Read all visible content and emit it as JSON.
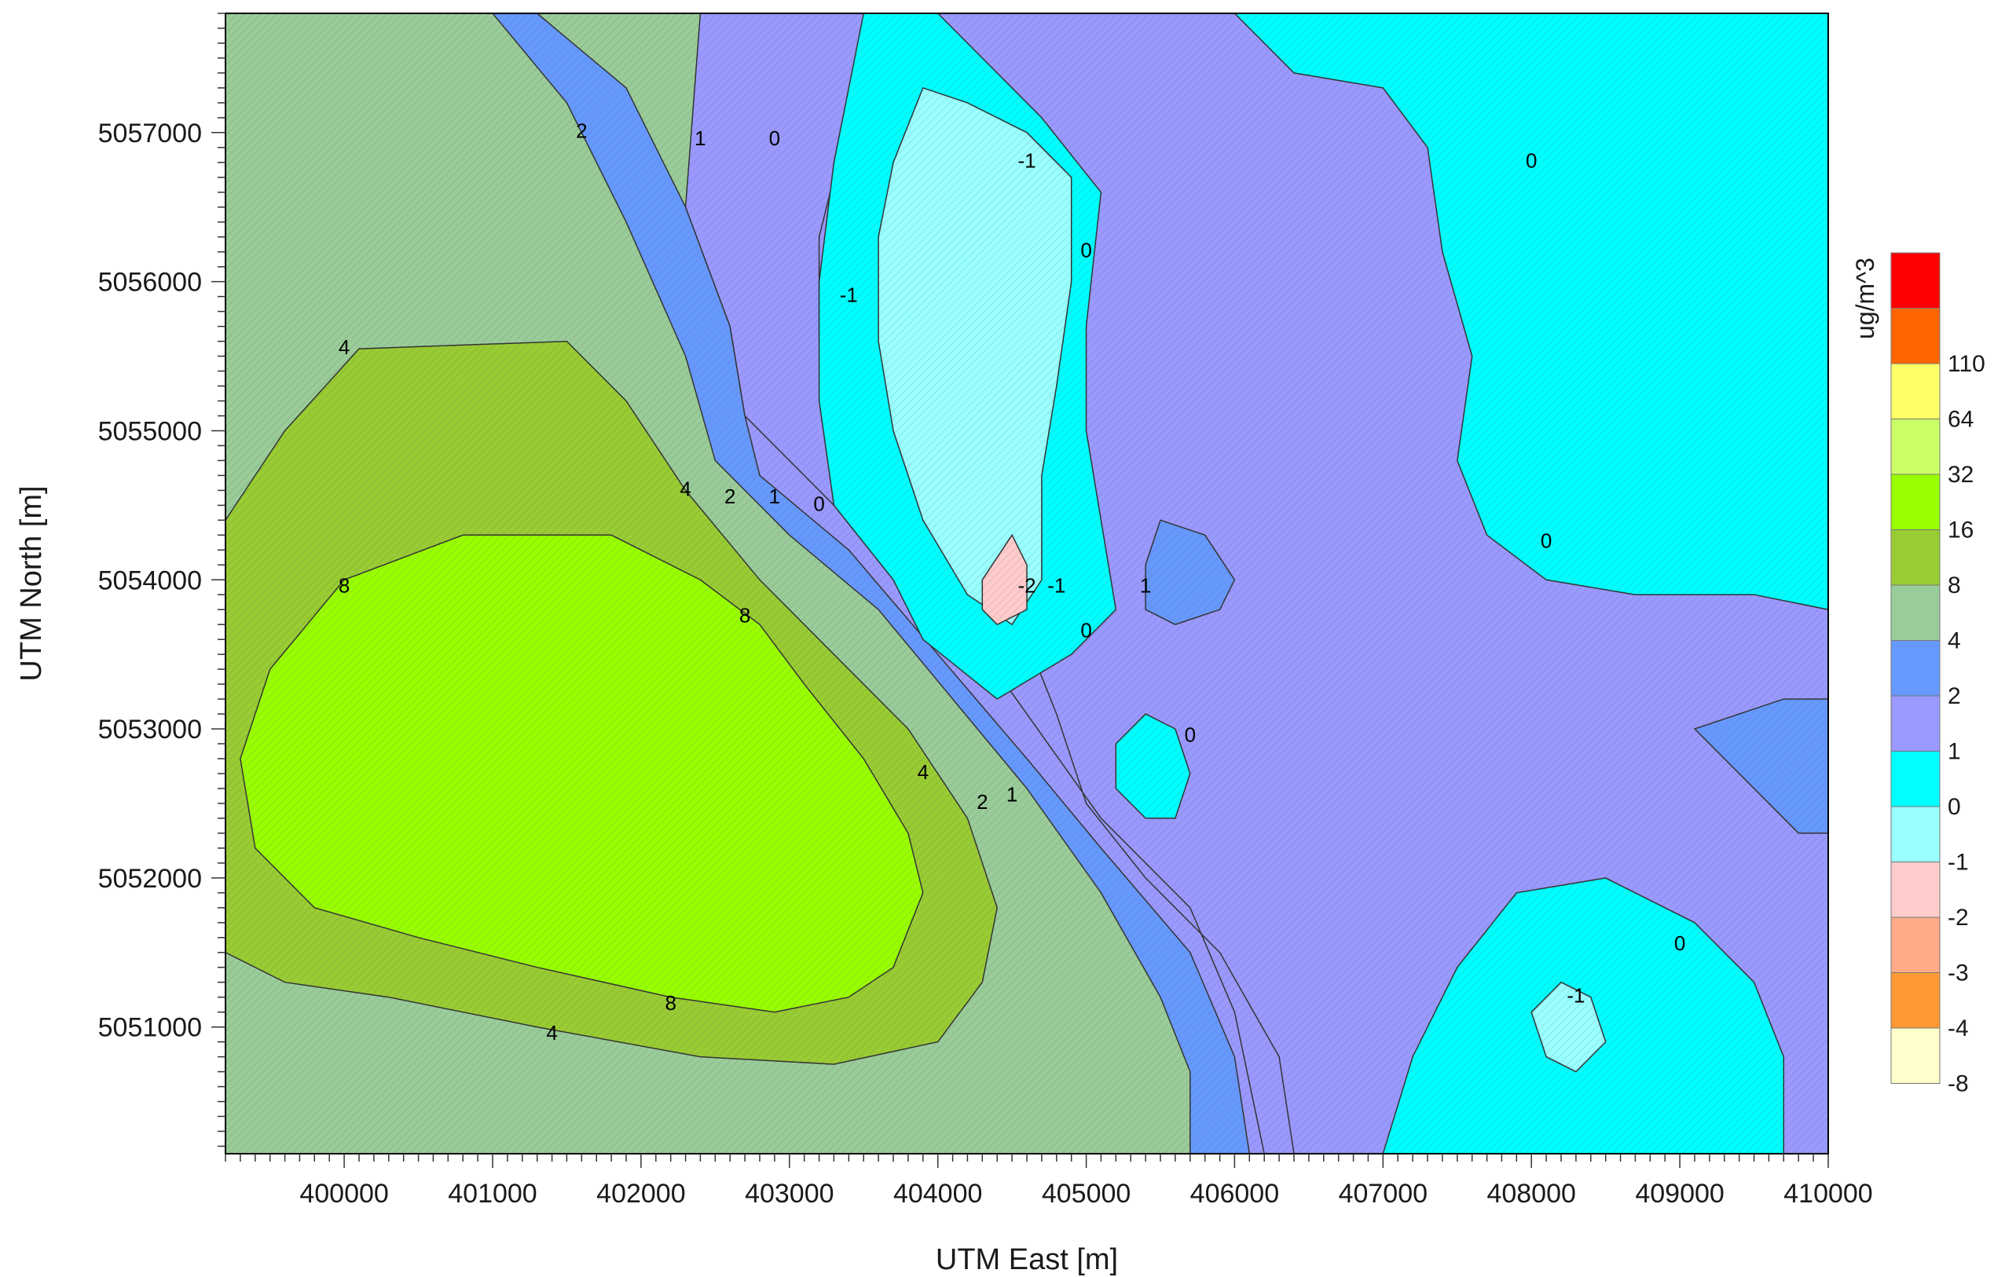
{
  "chart_data": {
    "type": "contour",
    "xlabel": "UTM East [m]",
    "ylabel": "UTM North [m]",
    "xlim": [
      399200,
      410000
    ],
    "ylim": [
      5050150,
      5057800
    ],
    "x_ticks": [
      400000,
      401000,
      402000,
      403000,
      404000,
      405000,
      406000,
      407000,
      408000,
      409000,
      410000
    ],
    "y_ticks": [
      5051000,
      5052000,
      5053000,
      5054000,
      5055000,
      5056000,
      5057000
    ],
    "grid": false,
    "colorbar": {
      "title": "ug/m^3",
      "placement": "right",
      "levels": [
        {
          "label": "-8",
          "color": "#ffffcc"
        },
        {
          "label": "-4",
          "color": "#ff9933"
        },
        {
          "label": "-3",
          "color": "#ffaa88"
        },
        {
          "label": "-2",
          "color": "#ffcccc"
        },
        {
          "label": "-1",
          "color": "#99ffff"
        },
        {
          "label": "0",
          "color": "#00ffff"
        },
        {
          "label": "1",
          "color": "#9999ff"
        },
        {
          "label": "2",
          "color": "#6699ff"
        },
        {
          "label": "4",
          "color": "#99cc99"
        },
        {
          "label": "8",
          "color": "#99cc33"
        },
        {
          "label": "16",
          "color": "#99ff00"
        },
        {
          "label": "32",
          "color": "#ccff66"
        },
        {
          "label": "64",
          "color": "#ffff66"
        },
        {
          "label": "110",
          "color": "#ff6600"
        },
        {
          "label": "",
          "color": "#ff0000"
        }
      ]
    },
    "regions": [
      {
        "level": "2",
        "color": "#6699ff",
        "points": [
          [
            399200,
            5057800
          ],
          [
            401300,
            5057800
          ],
          [
            401900,
            5057300
          ],
          [
            402300,
            5056500
          ],
          [
            402600,
            5055700
          ],
          [
            402700,
            5055100
          ],
          [
            403400,
            5054400
          ],
          [
            404100,
            5053800
          ],
          [
            404600,
            5053100
          ],
          [
            405100,
            5052400
          ],
          [
            405700,
            5051800
          ],
          [
            406000,
            5051100
          ],
          [
            406200,
            5050150
          ],
          [
            399200,
            5050150
          ]
        ]
      },
      {
        "level": "4",
        "color": "#99cc99",
        "points": [
          [
            399200,
            5057800
          ],
          [
            401000,
            5057800
          ],
          [
            401500,
            5057200
          ],
          [
            401900,
            5056400
          ],
          [
            402300,
            5055500
          ],
          [
            402500,
            5054800
          ],
          [
            403000,
            5054300
          ],
          [
            403600,
            5053800
          ],
          [
            404100,
            5053200
          ],
          [
            404600,
            5052600
          ],
          [
            405100,
            5051900
          ],
          [
            405500,
            5051200
          ],
          [
            405700,
            5050700
          ],
          [
            405700,
            5050150
          ],
          [
            399200,
            5050150
          ]
        ]
      },
      {
        "level": "8",
        "color": "#99cc33",
        "points": [
          [
            399200,
            5054400
          ],
          [
            399600,
            5055000
          ],
          [
            400100,
            5055550
          ],
          [
            401500,
            5055600
          ],
          [
            401900,
            5055200
          ],
          [
            402300,
            5054600
          ],
          [
            402800,
            5054000
          ],
          [
            403300,
            5053500
          ],
          [
            403800,
            5053000
          ],
          [
            404200,
            5052400
          ],
          [
            404400,
            5051800
          ],
          [
            404300,
            5051300
          ],
          [
            404000,
            5050900
          ],
          [
            403300,
            5050750
          ],
          [
            402400,
            5050800
          ],
          [
            401300,
            5051000
          ],
          [
            400300,
            5051200
          ],
          [
            399600,
            5051300
          ],
          [
            399200,
            5051500
          ]
        ]
      },
      {
        "level": "16",
        "color": "#99ff00",
        "points": [
          [
            399300,
            5052800
          ],
          [
            399500,
            5053400
          ],
          [
            400000,
            5054000
          ],
          [
            400800,
            5054300
          ],
          [
            401800,
            5054300
          ],
          [
            402400,
            5054000
          ],
          [
            402800,
            5053700
          ],
          [
            403100,
            5053300
          ],
          [
            403500,
            5052800
          ],
          [
            403800,
            5052300
          ],
          [
            403900,
            5051900
          ],
          [
            403700,
            5051400
          ],
          [
            403400,
            5051200
          ],
          [
            402900,
            5051100
          ],
          [
            402200,
            5051200
          ],
          [
            401300,
            5051400
          ],
          [
            400500,
            5051600
          ],
          [
            399800,
            5051800
          ],
          [
            399400,
            5052200
          ]
        ]
      },
      {
        "level": "0",
        "color": "#9999ff",
        "points": [
          [
            403500,
            5057800
          ],
          [
            410000,
            5057800
          ],
          [
            410000,
            5050150
          ],
          [
            406100,
            5050150
          ],
          [
            406000,
            5050800
          ],
          [
            405700,
            5051500
          ],
          [
            405100,
            5052200
          ],
          [
            404600,
            5052800
          ],
          [
            404000,
            5053500
          ],
          [
            403400,
            5054200
          ],
          [
            402800,
            5054700
          ],
          [
            402700,
            5055100
          ],
          [
            402900,
            5055700
          ],
          [
            403000,
            5056400
          ],
          [
            403100,
            5057100
          ]
        ]
      },
      {
        "level": "1",
        "color": "#9999ff",
        "points": [
          [
            402400,
            5057800
          ],
          [
            403600,
            5057800
          ],
          [
            403400,
            5057100
          ],
          [
            403200,
            5056300
          ],
          [
            403200,
            5055600
          ],
          [
            403300,
            5055000
          ],
          [
            403800,
            5054500
          ],
          [
            404300,
            5054100
          ],
          [
            404600,
            5053600
          ],
          [
            404800,
            5053100
          ],
          [
            405000,
            5052500
          ],
          [
            405400,
            5052000
          ],
          [
            405900,
            5051500
          ],
          [
            406300,
            5050800
          ],
          [
            406400,
            5050150
          ],
          [
            406200,
            5050150
          ],
          [
            406000,
            5051100
          ],
          [
            405700,
            5051800
          ],
          [
            405100,
            5052400
          ],
          [
            404600,
            5053100
          ],
          [
            404100,
            5053800
          ],
          [
            403400,
            5054400
          ],
          [
            402700,
            5055100
          ],
          [
            402600,
            5055700
          ],
          [
            402300,
            5056500
          ]
        ]
      },
      {
        "level": "-1",
        "color": "#00ffff",
        "points": [
          [
            403500,
            5057800
          ],
          [
            404000,
            5057800
          ],
          [
            404300,
            5057500
          ],
          [
            404700,
            5057100
          ],
          [
            405100,
            5056600
          ],
          [
            405000,
            5055700
          ],
          [
            405000,
            5055000
          ],
          [
            405100,
            5054400
          ],
          [
            405200,
            5053800
          ],
          [
            404900,
            5053500
          ],
          [
            404400,
            5053200
          ],
          [
            403900,
            5053600
          ],
          [
            403700,
            5054000
          ],
          [
            403300,
            5054500
          ],
          [
            403200,
            5055200
          ],
          [
            403200,
            5056000
          ],
          [
            403300,
            5056800
          ]
        ]
      },
      {
        "level": "-1",
        "color": "#00ffff",
        "points": [
          [
            406000,
            5057800
          ],
          [
            410000,
            5057800
          ],
          [
            410000,
            5053800
          ],
          [
            409500,
            5053900
          ],
          [
            408700,
            5053900
          ],
          [
            408100,
            5054000
          ],
          [
            407700,
            5054300
          ],
          [
            407500,
            5054800
          ],
          [
            407600,
            5055500
          ],
          [
            407400,
            5056200
          ],
          [
            407300,
            5056900
          ],
          [
            407000,
            5057300
          ],
          [
            406400,
            5057400
          ]
        ]
      },
      {
        "level": "-1",
        "color": "#00ffff",
        "points": [
          [
            407000,
            5050150
          ],
          [
            409700,
            5050150
          ],
          [
            409700,
            5050800
          ],
          [
            409500,
            5051300
          ],
          [
            409100,
            5051700
          ],
          [
            408500,
            5052000
          ],
          [
            407900,
            5051900
          ],
          [
            407500,
            5051400
          ],
          [
            407200,
            5050800
          ]
        ]
      },
      {
        "level": "-1",
        "color": "#00ffff",
        "points": [
          [
            405200,
            5052900
          ],
          [
            405400,
            5053100
          ],
          [
            405600,
            5053000
          ],
          [
            405700,
            5052700
          ],
          [
            405600,
            5052400
          ],
          [
            405400,
            5052400
          ],
          [
            405200,
            5052600
          ]
        ]
      },
      {
        "level": "-2",
        "color": "#99ffff",
        "points": [
          [
            403900,
            5057300
          ],
          [
            404200,
            5057200
          ],
          [
            404600,
            5057000
          ],
          [
            404900,
            5056700
          ],
          [
            404900,
            5056000
          ],
          [
            404800,
            5055300
          ],
          [
            404700,
            5054700
          ],
          [
            404700,
            5054000
          ],
          [
            404500,
            5053700
          ],
          [
            404200,
            5053900
          ],
          [
            403900,
            5054400
          ],
          [
            403700,
            5055000
          ],
          [
            403600,
            5055600
          ],
          [
            403600,
            5056300
          ],
          [
            403700,
            5056800
          ]
        ]
      },
      {
        "level": "-2",
        "color": "#99ffff",
        "points": [
          [
            408000,
            5051100
          ],
          [
            408200,
            5051300
          ],
          [
            408400,
            5051200
          ],
          [
            408500,
            5050900
          ],
          [
            408300,
            5050700
          ],
          [
            408100,
            5050800
          ]
        ]
      },
      {
        "level": "-3",
        "color": "#ffcccc",
        "points": [
          [
            404300,
            5054000
          ],
          [
            404500,
            5054300
          ],
          [
            404600,
            5054100
          ],
          [
            404600,
            5053800
          ],
          [
            404400,
            5053700
          ],
          [
            404300,
            5053800
          ]
        ]
      },
      {
        "level": "2",
        "color": "#6699ff",
        "points": [
          [
            405500,
            5054400
          ],
          [
            405800,
            5054300
          ],
          [
            406000,
            5054000
          ],
          [
            405900,
            5053800
          ],
          [
            405600,
            5053700
          ],
          [
            405400,
            5053800
          ],
          [
            405400,
            5054100
          ]
        ]
      },
      {
        "level": "2",
        "color": "#6699ff",
        "points": [
          [
            409100,
            5053000
          ],
          [
            409700,
            5053200
          ],
          [
            410000,
            5053200
          ],
          [
            410000,
            5052300
          ],
          [
            409800,
            5052300
          ],
          [
            409500,
            5052600
          ]
        ]
      }
    ],
    "contour_labels": [
      {
        "text": "2",
        "x": 401600,
        "y": 5057000
      },
      {
        "text": "1",
        "x": 402400,
        "y": 5056950
      },
      {
        "text": "0",
        "x": 402900,
        "y": 5056950
      },
      {
        "text": "-1",
        "x": 404600,
        "y": 5056800
      },
      {
        "text": "0",
        "x": 405000,
        "y": 5056200
      },
      {
        "text": "0",
        "x": 408000,
        "y": 5056800
      },
      {
        "text": "-1",
        "x": 403400,
        "y": 5055900
      },
      {
        "text": "4",
        "x": 400000,
        "y": 5055550
      },
      {
        "text": "4",
        "x": 402300,
        "y": 5054600
      },
      {
        "text": "2",
        "x": 402600,
        "y": 5054550
      },
      {
        "text": "1",
        "x": 402900,
        "y": 5054550
      },
      {
        "text": "0",
        "x": 403200,
        "y": 5054500
      },
      {
        "text": "0",
        "x": 408100,
        "y": 5054250
      },
      {
        "text": "8",
        "x": 400000,
        "y": 5053950
      },
      {
        "text": "8",
        "x": 402700,
        "y": 5053750
      },
      {
        "text": "-2",
        "x": 404600,
        "y": 5053950
      },
      {
        "text": "-1",
        "x": 404800,
        "y": 5053950
      },
      {
        "text": "1",
        "x": 405400,
        "y": 5053950
      },
      {
        "text": "0",
        "x": 405000,
        "y": 5053650
      },
      {
        "text": "0",
        "x": 405700,
        "y": 5052950
      },
      {
        "text": "4",
        "x": 403900,
        "y": 5052700
      },
      {
        "text": "2",
        "x": 404300,
        "y": 5052500
      },
      {
        "text": "1",
        "x": 404500,
        "y": 5052550
      },
      {
        "text": "0",
        "x": 409000,
        "y": 5051550
      },
      {
        "text": "8",
        "x": 402200,
        "y": 5051150
      },
      {
        "text": "4",
        "x": 401400,
        "y": 5050950
      },
      {
        "text": "-1",
        "x": 408300,
        "y": 5051200
      }
    ]
  }
}
